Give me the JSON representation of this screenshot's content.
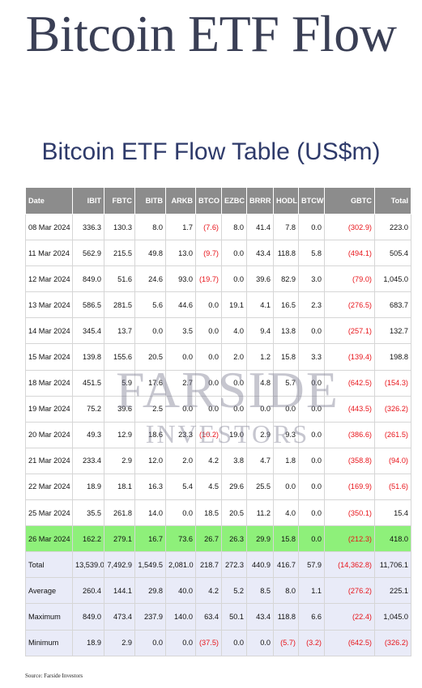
{
  "header": {
    "title": "Bitcoin ETF Flow",
    "table_title": "Bitcoin ETF Flow Table (US$m)"
  },
  "table": {
    "columns": [
      "Date",
      "IBIT",
      "FBTC",
      "BITB",
      "ARKB",
      "BTCO",
      "EZBC",
      "BRRR",
      "HODL",
      "BTCW",
      "GBTC",
      "Total"
    ],
    "rows": [
      [
        "08 Mar 2024",
        "336.3",
        "130.3",
        "8.0",
        "1.7",
        "(7.6)",
        "8.0",
        "41.4",
        "7.8",
        "0.0",
        "(302.9)",
        "223.0"
      ],
      [
        "11 Mar 2024",
        "562.9",
        "215.5",
        "49.8",
        "13.0",
        "(9.7)",
        "0.0",
        "43.4",
        "118.8",
        "5.8",
        "(494.1)",
        "505.4"
      ],
      [
        "12 Mar 2024",
        "849.0",
        "51.6",
        "24.6",
        "93.0",
        "(19.7)",
        "0.0",
        "39.6",
        "82.9",
        "3.0",
        "(79.0)",
        "1,045.0"
      ],
      [
        "13 Mar 2024",
        "586.5",
        "281.5",
        "5.6",
        "44.6",
        "0.0",
        "19.1",
        "4.1",
        "16.5",
        "2.3",
        "(276.5)",
        "683.7"
      ],
      [
        "14 Mar 2024",
        "345.4",
        "13.7",
        "0.0",
        "3.5",
        "0.0",
        "4.0",
        "9.4",
        "13.8",
        "0.0",
        "(257.1)",
        "132.7"
      ],
      [
        "15 Mar 2024",
        "139.8",
        "155.6",
        "20.5",
        "0.0",
        "0.0",
        "2.0",
        "1.2",
        "15.8",
        "3.3",
        "(139.4)",
        "198.8"
      ],
      [
        "18 Mar 2024",
        "451.5",
        "5.9",
        "17.6",
        "2.7",
        "0.0",
        "0.0",
        "4.8",
        "5.7",
        "0.0",
        "(642.5)",
        "(154.3)"
      ],
      [
        "19 Mar 2024",
        "75.2",
        "39.6",
        "2.5",
        "0.0",
        "0.0",
        "0.0",
        "0.0",
        "0.0",
        "0.0",
        "(443.5)",
        "(326.2)"
      ],
      [
        "20 Mar 2024",
        "49.3",
        "12.9",
        "18.6",
        "23.3",
        "(10.2)",
        "19.0",
        "2.9",
        "9.3",
        "0.0",
        "(386.6)",
        "(261.5)"
      ],
      [
        "21 Mar 2024",
        "233.4",
        "2.9",
        "12.0",
        "2.0",
        "4.2",
        "3.8",
        "4.7",
        "1.8",
        "0.0",
        "(358.8)",
        "(94.0)"
      ],
      [
        "22 Mar 2024",
        "18.9",
        "18.1",
        "16.3",
        "5.4",
        "4.5",
        "29.6",
        "25.5",
        "0.0",
        "0.0",
        "(169.9)",
        "(51.6)"
      ],
      [
        "25 Mar 2024",
        "35.5",
        "261.8",
        "14.0",
        "0.0",
        "18.5",
        "20.5",
        "11.2",
        "4.0",
        "0.0",
        "(350.1)",
        "15.4"
      ],
      [
        "26 Mar 2024",
        "162.2",
        "279.1",
        "16.7",
        "73.6",
        "26.7",
        "26.3",
        "29.9",
        "15.8",
        "0.0",
        "(212.3)",
        "418.0"
      ]
    ],
    "highlight_row": 12,
    "summary_rows": [
      [
        "Total",
        "13,539.0",
        "7,492.9",
        "1,549.5",
        "2,081.0",
        "218.7",
        "272.3",
        "440.9",
        "416.7",
        "57.9",
        "(14,362.8)",
        "11,706.1"
      ],
      [
        "Average",
        "260.4",
        "144.1",
        "29.8",
        "40.0",
        "4.2",
        "5.2",
        "8.5",
        "8.0",
        "1.1",
        "(276.2)",
        "225.1"
      ],
      [
        "Maximum",
        "849.0",
        "473.4",
        "237.9",
        "140.0",
        "63.4",
        "50.1",
        "43.4",
        "118.8",
        "6.6",
        "(22.4)",
        "1,045.0"
      ],
      [
        "Minimum",
        "18.9",
        "2.9",
        "0.0",
        "0.0",
        "(37.5)",
        "0.0",
        "0.0",
        "(5.7)",
        "(3.2)",
        "(642.5)",
        "(326.2)"
      ]
    ]
  },
  "watermark": {
    "line1": "FARSIDE",
    "line2": "INVESTORS"
  },
  "footer": {
    "source": "Source: Farside Investors"
  },
  "colors": {
    "header_bg": "#8c8c8c",
    "highlight_bg": "#8ef07a",
    "summary_bg": "#e9ebf8",
    "negative": "#e8141a",
    "title": "#3a3f55",
    "table_title": "#2e3a6a"
  }
}
